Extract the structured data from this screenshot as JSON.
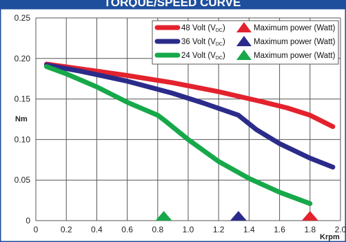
{
  "chart_data": {
    "type": "line",
    "title": "TORQUE/SPEED CURVE",
    "xlabel": "Krpm",
    "ylabel": "Nm",
    "xlim": [
      0,
      2.0
    ],
    "ylim": [
      0,
      0.25
    ],
    "x_ticks": [
      "0",
      "0.2",
      "0.4",
      "0.6",
      "0.8",
      "1.0",
      "1.2",
      "1.4",
      "1.6",
      "1.8",
      "2.0"
    ],
    "y_ticks": [
      "0",
      "0.05",
      "0.10",
      "0.15",
      "0.20",
      "0.25"
    ],
    "grid": true,
    "legend_position": "top-right",
    "colors": {
      "title_bar": "#1e4f9c",
      "grid": "#555555"
    },
    "series": [
      {
        "name": "48 Volt (V",
        "name_sub": "DC",
        "name_suffix": ")",
        "color": "#e3222d",
        "x": [
          0.07,
          0.3,
          0.6,
          0.9,
          1.2,
          1.5,
          1.65,
          1.8,
          1.95
        ],
        "y": [
          0.193,
          0.187,
          0.179,
          0.17,
          0.159,
          0.146,
          0.139,
          0.13,
          0.116
        ],
        "max_power_x": 1.8
      },
      {
        "name": "36 Volt (V",
        "name_sub": "DC",
        "name_suffix": ")",
        "color": "#2b2b8a",
        "x": [
          0.07,
          0.3,
          0.6,
          0.9,
          1.1,
          1.33,
          1.45,
          1.6,
          1.8,
          1.95
        ],
        "y": [
          0.192,
          0.184,
          0.172,
          0.157,
          0.145,
          0.13,
          0.112,
          0.095,
          0.077,
          0.066
        ],
        "max_power_x": 1.33
      },
      {
        "name": "24 Volt (V",
        "name_sub": "DC",
        "name_suffix": ")",
        "color": "#17a84a",
        "x": [
          0.07,
          0.2,
          0.4,
          0.6,
          0.8,
          0.85,
          1.0,
          1.2,
          1.4,
          1.6,
          1.8
        ],
        "y": [
          0.19,
          0.181,
          0.165,
          0.146,
          0.13,
          0.123,
          0.1,
          0.073,
          0.052,
          0.035,
          0.021
        ],
        "max_power_x": 0.84
      }
    ],
    "marker_label": "Maximum power (Watt)"
  }
}
